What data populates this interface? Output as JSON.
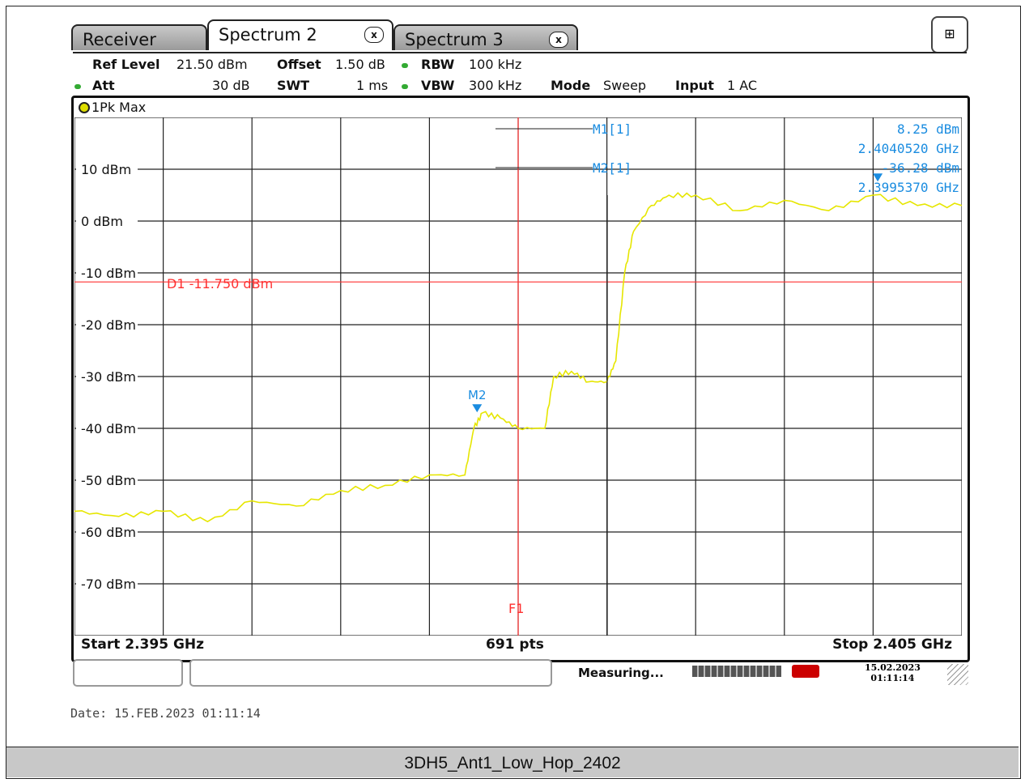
{
  "tabs": [
    {
      "label": "Receiver",
      "active": false
    },
    {
      "label": "Spectrum 2",
      "active": true,
      "close": "x"
    },
    {
      "label": "Spectrum 3",
      "active": false,
      "close": "x"
    }
  ],
  "settings": {
    "ref_level_label": "Ref Level",
    "ref_level_value": "21.50 dBm",
    "offset_label": "Offset",
    "offset_value": "1.50 dB",
    "rbw_label": "RBW",
    "rbw_value": "100 kHz",
    "att_label": "Att",
    "att_value": "30 dB",
    "swt_label": "SWT",
    "swt_value": "1 ms",
    "vbw_label": "VBW",
    "vbw_value": "300 kHz",
    "mode_label": "Mode",
    "mode_value": "Sweep",
    "input_label": "Input",
    "input_value": "1 AC"
  },
  "trace_label": "1Pk Max",
  "chart_data": {
    "type": "line",
    "x_unit": "GHz",
    "y_unit": "dBm",
    "xlim": [
      2.395,
      2.405
    ],
    "ylim": [
      -80,
      20
    ],
    "y_ticks": [
      10,
      0,
      -10,
      -20,
      -30,
      -40,
      -50,
      -60,
      -70
    ],
    "y_tick_labels": [
      "10 dBm",
      "0 dBm",
      "-10 dBm",
      "-20 dBm",
      "-30 dBm",
      "-40 dBm",
      "-50 dBm",
      "-60 dBm",
      "-70 dBm"
    ],
    "grid": true,
    "trace_color": "#e6e600",
    "series": [
      {
        "x": [
          2.395,
          2.3955,
          2.396,
          2.3965,
          2.397,
          2.3975,
          2.398,
          2.3985,
          2.399,
          2.3994,
          2.3995,
          2.3996,
          2.3998,
          2.4,
          2.4003,
          2.4004,
          2.4006,
          2.4008,
          2.401,
          2.4011,
          2.4012,
          2.4013,
          2.4015,
          2.4017,
          2.402,
          2.4025,
          2.403,
          2.4035,
          2.404,
          2.4045,
          2.405
        ],
        "y": [
          -56,
          -57,
          -56,
          -58,
          -54,
          -55,
          -52,
          -51,
          -49,
          -49,
          -40,
          -37,
          -38,
          -40,
          -40,
          -30,
          -29,
          -31,
          -31,
          -27,
          -10,
          -2,
          3,
          5,
          5,
          2,
          4,
          2,
          5,
          3,
          3
        ]
      }
    ],
    "display_line": {
      "label": "D1",
      "value_text": "-11.750 dBm",
      "value": -11.75,
      "color": "#ff3030"
    },
    "frequency_line": {
      "label": "F1",
      "x": 2.4,
      "color": "#ff3030"
    },
    "markers": [
      {
        "label": "M1[1]",
        "name": "M1",
        "x": 2.404052,
        "y": 8.25,
        "level_text": "8.25 dBm",
        "freq_text": "2.4040520 GHz"
      },
      {
        "label": "M2[1]",
        "name": "M2",
        "x": 2.399537,
        "y": -36.28,
        "level_text": "-36.28 dBm",
        "freq_text": "2.3995370 GHz"
      }
    ],
    "marker_color": "#1a8ce0",
    "start_label": "Start 2.395 GHz",
    "points_label": "691 pts",
    "stop_label": "Stop 2.405 GHz"
  },
  "status": {
    "measuring": "Measuring...",
    "date": "15.02.2023",
    "time": "01:11:14"
  },
  "footer_date": "Date: 15.FEB.2023  01:11:14",
  "caption": "3DH5_Ant1_Low_Hop_2402"
}
